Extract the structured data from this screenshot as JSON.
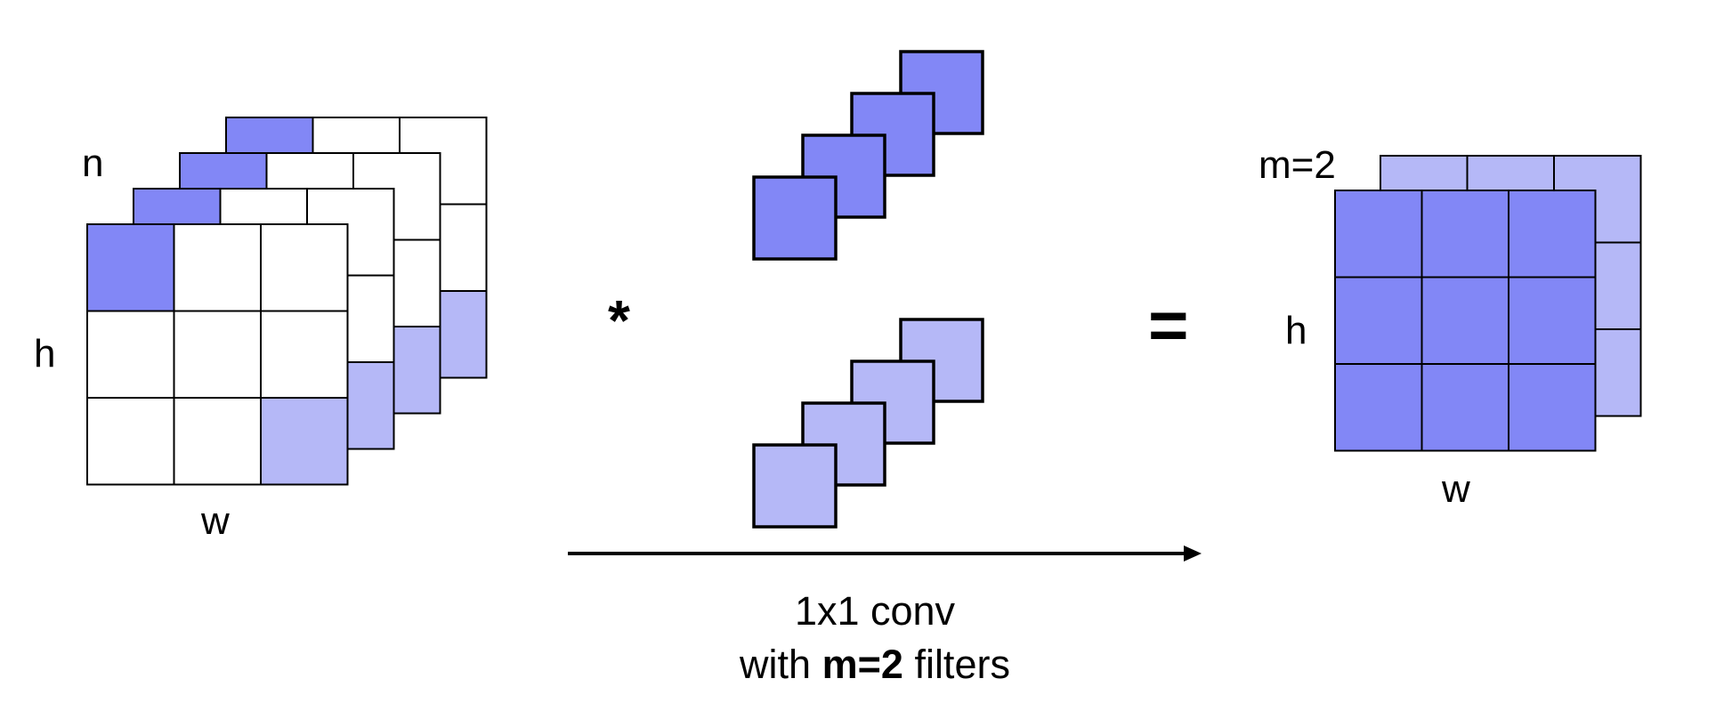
{
  "colors": {
    "dark_fill": "#8287f6",
    "light_fill": "#b5b8f7",
    "empty_fill": "#ffffff",
    "stroke": "#000000"
  },
  "input": {
    "depth_label": "n",
    "height_label": "h",
    "width_label": "w",
    "grid_rows": 3,
    "grid_cols": 3,
    "layer_count": 4
  },
  "operator": "*",
  "filters": {
    "count_per_group": 4,
    "group_shades": [
      "dark",
      "light"
    ]
  },
  "equals": "=",
  "output": {
    "depth_label": "m=2",
    "height_label": "h",
    "width_label": "w",
    "grid_rows": 3,
    "grid_cols": 3
  },
  "caption": {
    "line1": "1x1 conv",
    "line2_prefix": "with",
    "line2_bold": "m=2",
    "line2_suffix": "filters"
  }
}
